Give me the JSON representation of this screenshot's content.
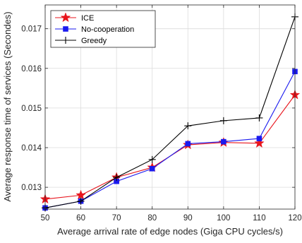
{
  "chart_data": {
    "type": "line",
    "x": [
      50,
      60,
      70,
      80,
      90,
      100,
      110,
      120
    ],
    "xlabel": "Average arrival rate of edge nodes (Giga CPU cycles/s)",
    "ylabel": "Average response time of services (Secondes)",
    "xlim": [
      50,
      120
    ],
    "ylim": [
      0.01245,
      0.0176
    ],
    "xticks": [
      50,
      60,
      70,
      80,
      90,
      100,
      110,
      120
    ],
    "xtick_labels": [
      "50",
      "60",
      "70",
      "80",
      "90",
      "100",
      "110",
      "120"
    ],
    "yticks": [
      0.013,
      0.014,
      0.015,
      0.016,
      0.017
    ],
    "ytick_labels": [
      "0.013",
      "0.014",
      "0.015",
      "0.016",
      "0.017"
    ],
    "grid": true,
    "legend_position": "top-left",
    "series": [
      {
        "name": "ICE",
        "color": "#e8141c",
        "marker": "star",
        "values": [
          0.0127,
          0.0128,
          0.01325,
          0.0135,
          0.01407,
          0.01413,
          0.01411,
          0.01533
        ]
      },
      {
        "name": "No-cooperation",
        "color": "#1a1aef",
        "marker": "square",
        "values": [
          0.01248,
          0.01265,
          0.01315,
          0.01347,
          0.0141,
          0.01415,
          0.01423,
          0.01592
        ]
      },
      {
        "name": "Greedy",
        "color": "#000000",
        "marker": "plus",
        "values": [
          0.01248,
          0.01265,
          0.01325,
          0.0137,
          0.01455,
          0.01468,
          0.01475,
          0.0173
        ]
      }
    ]
  }
}
